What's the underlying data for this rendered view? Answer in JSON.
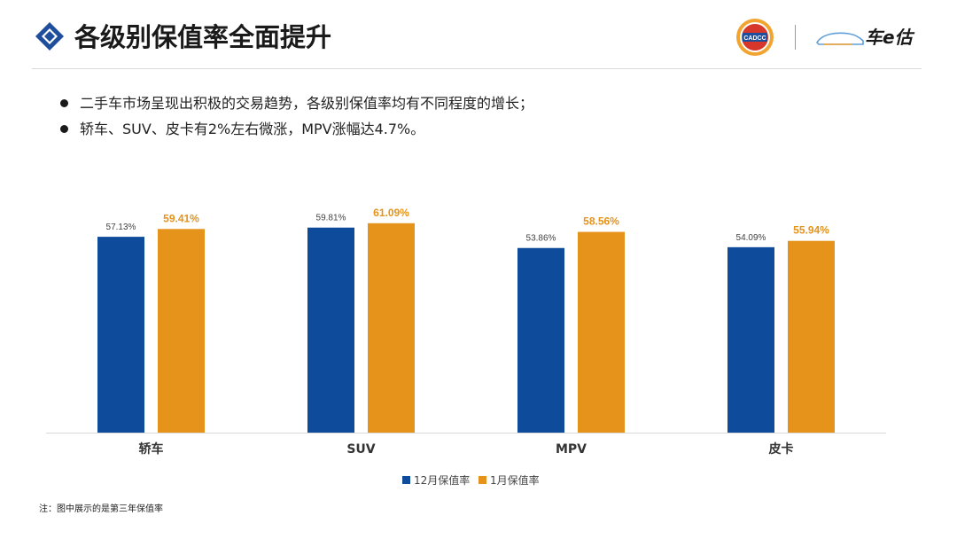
{
  "header": {
    "title": "各级别保值率全面提升",
    "logo_badge_text": "CADCC",
    "brand_name": "车e估",
    "accent_color": "#1f4e9c"
  },
  "bullets": [
    "二手车市场呈现出积极的交易趋势，各级别保值率均有不同程度的增长；",
    "轿车、SUV、皮卡有2%左右微涨，MPV涨幅达4.7%。"
  ],
  "chart_data": {
    "type": "bar",
    "categories": [
      "轿车",
      "SUV",
      "MPV",
      "皮卡"
    ],
    "series": [
      {
        "name": "12月保值率",
        "values": [
          57.13,
          59.81,
          53.86,
          54.09
        ],
        "labels": [
          "57.13%",
          "59.81%",
          "53.86%",
          "54.09%"
        ],
        "color": "#0e4b9b"
      },
      {
        "name": "1月保值率",
        "values": [
          59.41,
          61.09,
          58.56,
          55.94
        ],
        "labels": [
          "59.41%",
          "61.09%",
          "58.56%",
          "55.94%"
        ],
        "color": "#e5931b"
      }
    ],
    "ylim": [
      0,
      75
    ],
    "grid": false,
    "legend_position": "bottom",
    "data_label_colors": [
      "#444444",
      "#e5931b"
    ]
  },
  "footnote": "注：图中展示的是第三年保值率"
}
